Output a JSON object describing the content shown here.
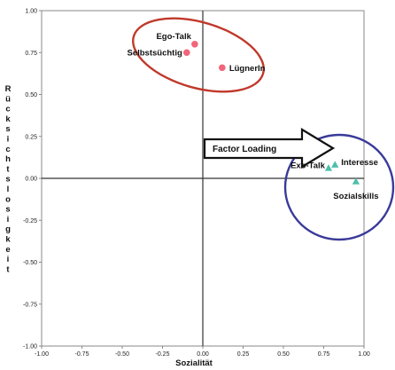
{
  "chart_data": {
    "type": "scatter",
    "xlabel": "Sozialität",
    "ylabel": "Rücksichtslosigkeit",
    "xlim": [
      -1.0,
      1.0
    ],
    "ylim": [
      -1.0,
      1.0
    ],
    "x_ticks": [
      "-1.00",
      "-0.75",
      "-0.50",
      "-0.25",
      "0.00",
      "0.25",
      "0.50",
      "0.75",
      "1.00"
    ],
    "y_ticks": [
      "1.00",
      "0.75",
      "0.50",
      "0.25",
      "0.00",
      "-0.25",
      "-0.50",
      "-0.75",
      "-1.00"
    ],
    "grid": false,
    "series": [
      {
        "marker": "circle",
        "color": "#f2657a",
        "points": [
          {
            "label": "Ego-Talk",
            "x": -0.05,
            "y": 0.8
          },
          {
            "label": "Selbstsüchtig",
            "x": -0.1,
            "y": 0.75
          },
          {
            "label": "LügnerIn",
            "x": 0.12,
            "y": 0.66
          }
        ]
      },
      {
        "marker": "triangle",
        "color": "#4dbfaa",
        "points": [
          {
            "label": "Exo-Talk",
            "x": 0.78,
            "y": 0.06
          },
          {
            "label": "Interesse",
            "x": 0.82,
            "y": 0.08
          },
          {
            "label": "Sozialskills",
            "x": 0.95,
            "y": -0.02
          }
        ]
      }
    ],
    "annotations": {
      "arrow_text": "Factor Loading",
      "cluster_ellipse_top_color": "#c0392b",
      "cluster_ellipse_right_color": "#3a3a9a"
    }
  }
}
